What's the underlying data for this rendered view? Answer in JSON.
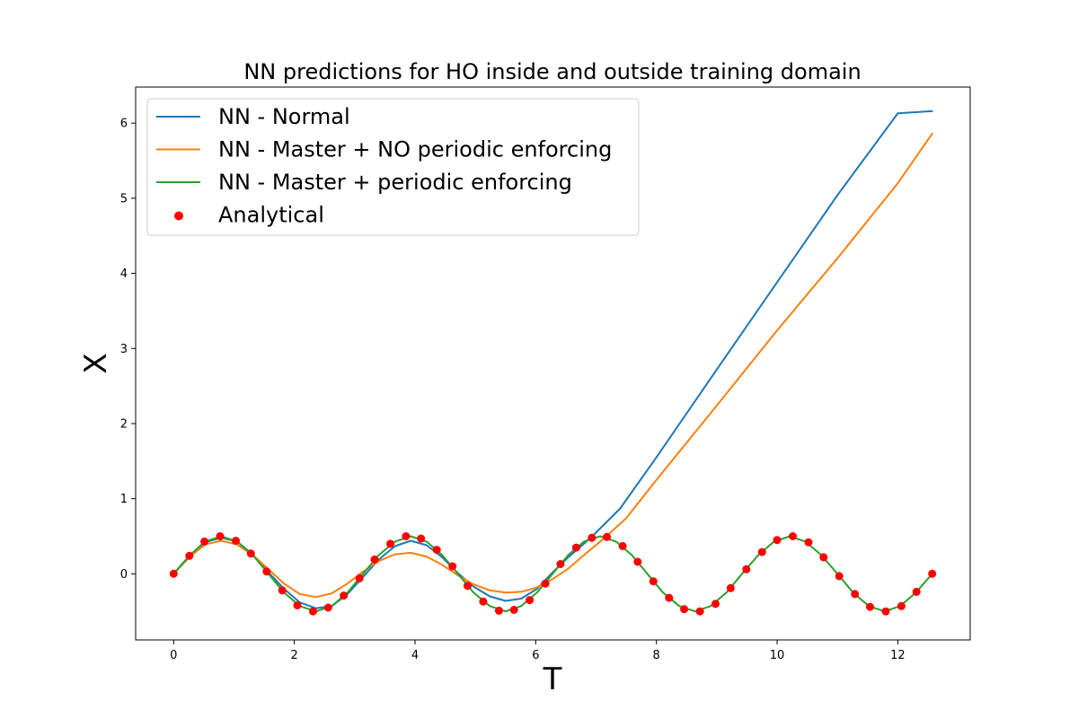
{
  "chart_data": {
    "type": "line",
    "title": "NN predictions for HO inside and outside training domain",
    "xlabel": "T",
    "ylabel": "X",
    "xlim": [
      -0.63,
      13.2
    ],
    "ylim": [
      -0.88,
      6.48
    ],
    "xticks": [
      0,
      2,
      4,
      6,
      8,
      10,
      12
    ],
    "yticks": [
      0,
      1,
      2,
      3,
      4,
      5,
      6
    ],
    "grid": false,
    "legend_position": "top-left",
    "series": [
      {
        "name": "NN - Normal",
        "color": "#1f77b4",
        "kind": "line",
        "x": [
          0,
          0.26,
          0.52,
          0.79,
          1.05,
          1.31,
          1.57,
          1.83,
          2.09,
          2.36,
          2.62,
          2.88,
          3.14,
          3.4,
          3.67,
          3.93,
          4.19,
          4.45,
          4.71,
          4.97,
          5.24,
          5.5,
          5.76,
          6.02,
          6.28,
          6.54,
          6.8,
          7.0,
          7.4,
          8.0,
          9.0,
          10.0,
          11.0,
          12.0,
          12.57
        ],
        "y": [
          0,
          0.24,
          0.42,
          0.48,
          0.43,
          0.26,
          0.02,
          -0.2,
          -0.38,
          -0.46,
          -0.43,
          -0.27,
          -0.04,
          0.19,
          0.37,
          0.44,
          0.38,
          0.22,
          0.01,
          -0.17,
          -0.3,
          -0.36,
          -0.33,
          -0.2,
          0.02,
          0.22,
          0.4,
          0.55,
          0.87,
          1.55,
          2.72,
          3.88,
          5.04,
          6.13,
          6.16
        ]
      },
      {
        "name": "NN - Master + NO periodic enforcing",
        "color": "#ff7f0e",
        "kind": "line",
        "x": [
          0,
          0.26,
          0.52,
          0.79,
          1.05,
          1.31,
          1.57,
          1.83,
          2.09,
          2.36,
          2.62,
          2.88,
          3.14,
          3.4,
          3.67,
          3.93,
          4.19,
          4.45,
          4.71,
          4.97,
          5.24,
          5.5,
          5.76,
          6.02,
          6.28,
          6.54,
          6.8,
          7.1,
          7.5,
          8.0,
          9.0,
          10.0,
          11.0,
          12.0,
          12.57
        ],
        "y": [
          0,
          0.22,
          0.39,
          0.44,
          0.39,
          0.25,
          0.06,
          -0.13,
          -0.27,
          -0.31,
          -0.26,
          -0.13,
          0.03,
          0.17,
          0.26,
          0.28,
          0.23,
          0.12,
          -0.02,
          -0.14,
          -0.22,
          -0.25,
          -0.24,
          -0.18,
          -0.07,
          0.07,
          0.25,
          0.45,
          0.74,
          1.25,
          2.24,
          3.24,
          4.2,
          5.2,
          5.86
        ]
      },
      {
        "name": "NN - Master + periodic enforcing",
        "color": "#2ca02c",
        "kind": "line",
        "x": [
          0,
          0.26,
          0.52,
          0.79,
          1.05,
          1.31,
          1.57,
          1.83,
          2.09,
          2.36,
          2.62,
          2.88,
          3.14,
          3.4,
          3.67,
          3.93,
          4.19,
          4.45,
          4.71,
          4.97,
          5.24,
          5.5,
          5.76,
          6.02,
          6.28,
          6.54,
          6.8,
          7.07,
          7.33,
          7.59,
          7.85,
          8.11,
          8.38,
          8.64,
          8.9,
          9.16,
          9.42,
          9.69,
          9.95,
          10.21,
          10.47,
          10.73,
          11.0,
          11.26,
          11.52,
          11.78,
          12.04,
          12.3,
          12.57
        ],
        "y": [
          0,
          0.24,
          0.43,
          0.5,
          0.43,
          0.25,
          0,
          -0.25,
          -0.43,
          -0.5,
          -0.43,
          -0.25,
          0,
          0.25,
          0.43,
          0.5,
          0.43,
          0.25,
          0,
          -0.25,
          -0.43,
          -0.5,
          -0.43,
          -0.25,
          0,
          0.25,
          0.43,
          0.5,
          0.43,
          0.25,
          0,
          -0.25,
          -0.43,
          -0.5,
          -0.43,
          -0.25,
          0,
          0.25,
          0.43,
          0.5,
          0.43,
          0.25,
          0,
          -0.25,
          -0.43,
          -0.5,
          -0.43,
          -0.25,
          0
        ]
      },
      {
        "name": "Analytical",
        "color": "#ff0000",
        "kind": "scatter",
        "x": [
          0,
          0.26,
          0.51,
          0.77,
          1.03,
          1.28,
          1.54,
          1.8,
          2.05,
          2.31,
          2.56,
          2.82,
          3.08,
          3.33,
          3.59,
          3.85,
          4.1,
          4.36,
          4.62,
          4.87,
          5.13,
          5.39,
          5.64,
          5.9,
          6.16,
          6.41,
          6.67,
          6.93,
          7.18,
          7.44,
          7.69,
          7.95,
          8.21,
          8.46,
          8.72,
          8.98,
          9.23,
          9.49,
          9.75,
          10.0,
          10.26,
          10.52,
          10.77,
          11.03,
          11.29,
          11.54,
          11.8,
          12.06,
          12.31,
          12.57
        ],
        "y": [
          0,
          0.24,
          0.43,
          0.5,
          0.44,
          0.27,
          0.03,
          -0.22,
          -0.42,
          -0.5,
          -0.45,
          -0.29,
          -0.06,
          0.19,
          0.4,
          0.5,
          0.47,
          0.32,
          0.1,
          -0.16,
          -0.37,
          -0.49,
          -0.48,
          -0.35,
          -0.13,
          0.13,
          0.35,
          0.48,
          0.49,
          0.37,
          0.16,
          -0.1,
          -0.32,
          -0.47,
          -0.5,
          -0.4,
          -0.19,
          0.06,
          0.29,
          0.45,
          0.5,
          0.42,
          0.22,
          -0.03,
          -0.27,
          -0.44,
          -0.5,
          -0.43,
          -0.24,
          0
        ]
      }
    ]
  }
}
